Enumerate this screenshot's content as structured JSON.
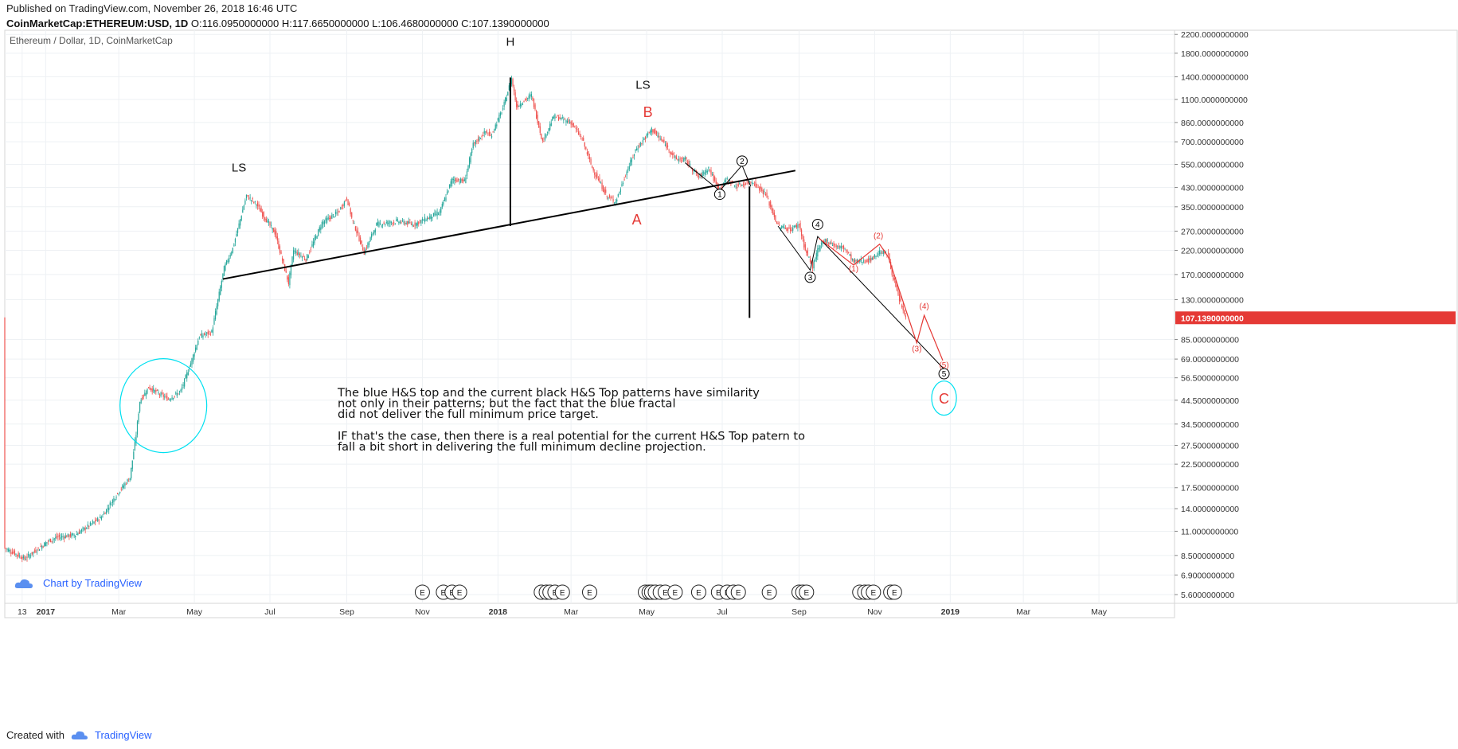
{
  "header": {
    "published": "Published on TradingView.com, November 26, 2018 16:46 UTC",
    "symbol": "CoinMarketCap:ETHEREUM:USD, 1D",
    "ohlc": "O:116.0950000000 H:117.6650000000 L:106.4680000000 C:107.1390000000"
  },
  "chart_label": "Ethereum / Dollar, 1D, CoinMarketCap",
  "watermark": "Chart by TradingView",
  "footer": {
    "created_with": "Created with",
    "brand": "TradingView"
  },
  "colors": {
    "up": "#26a69a",
    "down": "#ef5350",
    "neckline": "#000000",
    "fractal": "#00e0f0",
    "wave": "#e53935",
    "price_tag": "#e53935"
  },
  "chart_data": {
    "type": "candlestick",
    "title": "Ethereum / Dollar, 1D, CoinMarketCap",
    "y_scale": "log",
    "y_ticks": [
      "2200.0000000000",
      "1800.0000000000",
      "1400.0000000000",
      "1100.0000000000",
      "860.0000000000",
      "700.0000000000",
      "550.0000000000",
      "430.0000000000",
      "350.0000000000",
      "270.0000000000",
      "220.0000000000",
      "170.0000000000",
      "130.0000000000",
      "85.0000000000",
      "69.0000000000",
      "56.5000000000",
      "44.5000000000",
      "34.5000000000",
      "27.5000000000",
      "22.5000000000",
      "17.5000000000",
      "14.0000000000",
      "11.0000000000",
      "8.5000000000",
      "6.9000000000",
      "5.6000000000"
    ],
    "x_ticks": [
      "13",
      "2017",
      "Mar",
      "May",
      "Jul",
      "Sep",
      "Nov",
      "2018",
      "Mar",
      "May",
      "Jul",
      "Sep",
      "Nov",
      "2019",
      "Mar",
      "May"
    ],
    "x_tick_dates": [
      "2016-12-13",
      "2017-01-01",
      "2017-03-01",
      "2017-05-01",
      "2017-07-01",
      "2017-09-01",
      "2017-11-01",
      "2018-01-01",
      "2018-03-01",
      "2018-05-01",
      "2018-07-01",
      "2018-09-01",
      "2018-11-01",
      "2019-01-01",
      "2019-03-01",
      "2019-05-01"
    ],
    "ylim": [
      5.1,
      2300
    ],
    "xlim": [
      "2016-11-29",
      "2019-07-01"
    ],
    "last_price": "107.1390000000",
    "price_path": [
      [
        "2016-11-29",
        9.2
      ],
      [
        "2016-12-15",
        8.2
      ],
      [
        "2017-01-03",
        9.9
      ],
      [
        "2017-01-10",
        10.3
      ],
      [
        "2017-01-25",
        10.6
      ],
      [
        "2017-02-15",
        12.8
      ],
      [
        "2017-02-28",
        16.5
      ],
      [
        "2017-03-10",
        19.5
      ],
      [
        "2017-03-15",
        31
      ],
      [
        "2017-03-18",
        44
      ],
      [
        "2017-03-25",
        51
      ],
      [
        "2017-04-10",
        45
      ],
      [
        "2017-04-20",
        49
      ],
      [
        "2017-04-28",
        66
      ],
      [
        "2017-05-05",
        88
      ],
      [
        "2017-05-15",
        92
      ],
      [
        "2017-05-25",
        182
      ],
      [
        "2017-06-01",
        225
      ],
      [
        "2017-06-12",
        395
      ],
      [
        "2017-06-20",
        360
      ],
      [
        "2017-06-27",
        310
      ],
      [
        "2017-07-05",
        265
      ],
      [
        "2017-07-16",
        155
      ],
      [
        "2017-07-20",
        220
      ],
      [
        "2017-07-30",
        200
      ],
      [
        "2017-08-12",
        295
      ],
      [
        "2017-08-25",
        330
      ],
      [
        "2017-09-01",
        385
      ],
      [
        "2017-09-05",
        310
      ],
      [
        "2017-09-15",
        215
      ],
      [
        "2017-09-25",
        290
      ],
      [
        "2017-10-12",
        300
      ],
      [
        "2017-10-25",
        290
      ],
      [
        "2017-11-15",
        330
      ],
      [
        "2017-11-25",
        470
      ],
      [
        "2017-12-05",
        460
      ],
      [
        "2017-12-12",
        680
      ],
      [
        "2017-12-22",
        780
      ],
      [
        "2017-12-26",
        740
      ],
      [
        "2018-01-05",
        1000
      ],
      [
        "2018-01-12",
        1380
      ],
      [
        "2018-01-16",
        1020
      ],
      [
        "2018-01-28",
        1150
      ],
      [
        "2018-02-06",
        700
      ],
      [
        "2018-02-15",
        920
      ],
      [
        "2018-03-01",
        860
      ],
      [
        "2018-03-10",
        720
      ],
      [
        "2018-03-18",
        530
      ],
      [
        "2018-03-30",
        390
      ],
      [
        "2018-04-06",
        370
      ],
      [
        "2018-04-15",
        510
      ],
      [
        "2018-04-22",
        640
      ],
      [
        "2018-05-05",
        800
      ],
      [
        "2018-05-15",
        690
      ],
      [
        "2018-05-25",
        580
      ],
      [
        "2018-06-01",
        580
      ],
      [
        "2018-06-12",
        480
      ],
      [
        "2018-06-20",
        530
      ],
      [
        "2018-06-28",
        420
      ],
      [
        "2018-07-05",
        470
      ],
      [
        "2018-07-12",
        435
      ],
      [
        "2018-07-25",
        460
      ],
      [
        "2018-08-05",
        400
      ],
      [
        "2018-08-15",
        285
      ],
      [
        "2018-08-25",
        275
      ],
      [
        "2018-09-01",
        290
      ],
      [
        "2018-09-06",
        220
      ],
      [
        "2018-09-12",
        185
      ],
      [
        "2018-09-16",
        220
      ],
      [
        "2018-09-22",
        245
      ],
      [
        "2018-10-01",
        230
      ],
      [
        "2018-10-08",
        225
      ],
      [
        "2018-10-15",
        195
      ],
      [
        "2018-10-28",
        198
      ],
      [
        "2018-11-06",
        218
      ],
      [
        "2018-11-12",
        210
      ],
      [
        "2018-11-14",
        182
      ],
      [
        "2018-11-20",
        135
      ],
      [
        "2018-11-26",
        107
      ]
    ],
    "annotations": [
      {
        "text": "H",
        "date": "2018-01-11",
        "price": 1950
      },
      {
        "text": "LS",
        "date": "2017-06-06",
        "price": 510
      },
      {
        "text": "LS",
        "date": "2018-04-28",
        "price": 1230
      },
      {
        "text": "B",
        "date": "2018-05-02",
        "price": 910,
        "color": "wave"
      },
      {
        "text": "A",
        "date": "2018-04-23",
        "price": 290,
        "color": "wave"
      },
      {
        "text": "C",
        "date": "2018-12-27",
        "price": 43,
        "color": "wave"
      }
    ],
    "neckline": [
      [
        "2017-05-24",
        162
      ],
      [
        "2018-08-29",
        515
      ]
    ],
    "head_drop": [
      [
        "2018-01-11",
        1390
      ],
      [
        "2018-01-11",
        285
      ]
    ],
    "target_drop": [
      [
        "2018-07-23",
        435
      ],
      [
        "2018-07-23",
        107
      ]
    ],
    "circled_waves": [
      {
        "label": "1",
        "date": "2018-06-29",
        "price": 400
      },
      {
        "label": "2",
        "date": "2018-07-17",
        "price": 570
      },
      {
        "label": "3",
        "date": "2018-09-10",
        "price": 165
      },
      {
        "label": "4",
        "date": "2018-09-16",
        "price": 290
      },
      {
        "label": "5",
        "date": "2018-12-27",
        "price": 59
      }
    ],
    "wave_lines_black": [
      [
        [
          "2018-06-01",
          560
        ],
        [
          "2018-06-29",
          415
        ],
        [
          "2018-07-17",
          545
        ],
        [
          "2018-07-24",
          435
        ]
      ],
      [
        [
          "2018-08-15",
          285
        ],
        [
          "2018-09-10",
          178
        ],
        [
          "2018-09-16",
          255
        ],
        [
          "2018-12-27",
          62
        ]
      ]
    ],
    "projected_waves": [
      {
        "label": "(1)",
        "date": "2018-10-15",
        "price": 176
      },
      {
        "label": "(2)",
        "date": "2018-11-04",
        "price": 250
      },
      {
        "label": "(3)",
        "date": "2018-12-05",
        "price": 75
      },
      {
        "label": "(4)",
        "date": "2018-12-11",
        "price": 118
      },
      {
        "label": "(5)",
        "date": "2018-12-27",
        "price": 63
      }
    ],
    "projected_path": [
      [
        "2018-09-17",
        250
      ],
      [
        "2018-10-15",
        188
      ],
      [
        "2018-11-05",
        235
      ],
      [
        "2018-11-12",
        205
      ],
      [
        "2018-12-05",
        82
      ],
      [
        "2018-12-11",
        110
      ],
      [
        "2018-12-26",
        68
      ]
    ],
    "fractal_circles": [
      {
        "date": "2017-04-06",
        "price": 42,
        "rx_days": 35,
        "ry_factor": 1.65
      },
      {
        "date": "2018-12-27",
        "price": 45.5,
        "rx_days": 10,
        "ry_factor": 1.2
      }
    ],
    "comment": {
      "paragraph1": [
        "The blue H&S top and the current black H&S Top patterns have similarity",
        "not only in their patterns; but the fact that the blue fractal",
        "did not deliver the full minimum price target."
      ],
      "paragraph2": [
        "IF that's the case, then there is a real potential for the current H&S Top patern to",
        "fall a bit short in delivering the full minimum decline projection."
      ]
    },
    "earnings_dates": [
      "2017-11-01",
      "2017-11-18",
      "2017-11-25",
      "2017-12-01",
      "2018-02-05",
      "2018-02-09",
      "2018-02-12",
      "2018-02-16",
      "2018-02-22",
      "2018-03-16",
      "2018-04-30",
      "2018-05-03",
      "2018-05-05",
      "2018-05-08",
      "2018-05-12",
      "2018-05-16",
      "2018-05-24",
      "2018-06-12",
      "2018-06-28",
      "2018-07-05",
      "2018-07-10",
      "2018-07-14",
      "2018-08-08",
      "2018-09-01",
      "2018-09-04",
      "2018-09-07",
      "2018-10-20",
      "2018-10-24",
      "2018-10-27",
      "2018-10-31",
      "2018-11-14",
      "2018-11-17"
    ],
    "earnings_label": "E"
  }
}
